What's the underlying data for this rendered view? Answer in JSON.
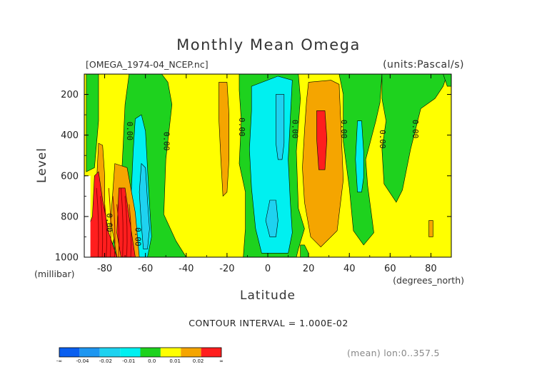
{
  "title": "Monthly Mean Omega",
  "file_label": "[OMEGA_1974-04_NCEP.nc]",
  "units_label": "(units:Pascal/s)",
  "ylabel": "Level",
  "ylabel_units": "(millibar)",
  "xlabel": "Latitude",
  "xlabel_units": "(degrees_north)",
  "contour_interval_text": "CONTOUR INTERVAL = 1.000E-02",
  "mean_text": "(mean) lon:0..357.5",
  "colors": {
    "c_neg_inf": "#0a5ff0",
    "c_m04": "#1e96f0",
    "c_m02": "#1ed2f0",
    "c_m01": "#00f0f0",
    "c_0": "#1ed21e",
    "c_001": "#ffff00",
    "c_002": "#f5a500",
    "c_pos": "#ff1e1e",
    "c_dark": "#8b0000"
  },
  "chart_data": {
    "type": "heatmap",
    "subtype": "filled-contour",
    "variable": "omega",
    "x": {
      "label": "Latitude",
      "units": "degrees_north",
      "range": [
        -90,
        90
      ],
      "ticks": [
        -80,
        -60,
        -40,
        -20,
        0,
        20,
        40,
        60,
        80
      ],
      "tick_labels": [
        "-80",
        "-60",
        "-40",
        "-20",
        "0",
        "20",
        "40",
        "60",
        "80"
      ]
    },
    "y": {
      "label": "Level",
      "units": "millibar",
      "range": [
        1000,
        100
      ],
      "ticks": [
        200,
        400,
        600,
        800,
        1000
      ],
      "tick_labels": [
        "200",
        "400",
        "600",
        "800",
        "1000"
      ]
    },
    "colorbar": {
      "labels": [
        "-∞",
        "-0.04",
        "-0.02",
        "-0.01",
        "0.0",
        "0.01",
        "0.02",
        "∞"
      ],
      "colors": [
        "#0a5ff0",
        "#1e96f0",
        "#1ed2f0",
        "#00f0f0",
        "#1ed21e",
        "#ffff00",
        "#f5a500",
        "#ff1e1e"
      ]
    },
    "contour_interval": 0.01,
    "zero_line_labels": [
      {
        "lat": -69,
        "level": 380,
        "text": "0.00"
      },
      {
        "lat": -51,
        "level": 430,
        "text": "0.00"
      },
      {
        "lat": -14,
        "level": 360,
        "text": "0.00"
      },
      {
        "lat": 12,
        "level": 370,
        "text": "0.00"
      },
      {
        "lat": 36,
        "level": 370,
        "text": "0.00"
      },
      {
        "lat": 55,
        "level": 420,
        "text": "0.00"
      },
      {
        "lat": 71,
        "level": 370,
        "text": "0.00"
      },
      {
        "lat": -79,
        "level": 830,
        "text": "0.00"
      },
      {
        "lat": -65,
        "level": 900,
        "text": "0.00"
      }
    ],
    "regions": [
      {
        "cls": "c_0",
        "pts": [
          [
            -89,
            100
          ],
          [
            -83,
            100
          ],
          [
            -83,
            330
          ],
          [
            -85,
            560
          ],
          [
            -89,
            580
          ]
        ]
      },
      {
        "cls": "c_0",
        "pts": [
          [
            -68,
            100
          ],
          [
            -52,
            100
          ],
          [
            -49,
            140
          ],
          [
            -47,
            250
          ],
          [
            -50,
            520
          ],
          [
            -51,
            790
          ],
          [
            -45,
            920
          ],
          [
            -40,
            1000
          ],
          [
            -78,
            1000
          ],
          [
            -74,
            860
          ],
          [
            -72,
            660
          ],
          [
            -71,
            460
          ],
          [
            -70,
            250
          ]
        ]
      },
      {
        "cls": "c_m01",
        "pts": [
          [
            -65,
            320
          ],
          [
            -62,
            300
          ],
          [
            -60,
            380
          ],
          [
            -59,
            560
          ],
          [
            -58,
            740
          ],
          [
            -57,
            900
          ],
          [
            -59,
            1000
          ],
          [
            -68,
            1000
          ],
          [
            -69,
            870
          ],
          [
            -67,
            690
          ],
          [
            -66,
            480
          ]
        ]
      },
      {
        "cls": "c_m02",
        "pts": [
          [
            -62,
            540
          ],
          [
            -60,
            560
          ],
          [
            -59,
            720
          ],
          [
            -58,
            860
          ],
          [
            -59,
            960
          ],
          [
            -61,
            960
          ],
          [
            -62,
            840
          ],
          [
            -63,
            680
          ]
        ]
      },
      {
        "cls": "c_002",
        "pts": [
          [
            -83,
            440
          ],
          [
            -81,
            450
          ],
          [
            -80,
            600
          ],
          [
            -80,
            800
          ],
          [
            -82,
            900
          ],
          [
            -85,
            850
          ],
          [
            -84,
            640
          ]
        ]
      },
      {
        "cls": "c_002",
        "pts": [
          [
            -75,
            540
          ],
          [
            -69,
            560
          ],
          [
            -65,
            780
          ],
          [
            -63,
            1000
          ],
          [
            -74,
            1000
          ],
          [
            -77,
            820
          ]
        ]
      },
      {
        "cls": "c_pos",
        "pts": [
          [
            -85,
            600
          ],
          [
            -83,
            580
          ],
          [
            -81,
            720
          ],
          [
            -78,
            880
          ],
          [
            -74,
            1000
          ],
          [
            -88,
            1000
          ],
          [
            -88,
            850
          ],
          [
            -86,
            800
          ]
        ]
      },
      {
        "cls": "c_pos",
        "pts": [
          [
            -73,
            660
          ],
          [
            -70,
            660
          ],
          [
            -68,
            800
          ],
          [
            -65,
            1000
          ],
          [
            -72,
            1000
          ],
          [
            -74,
            880
          ]
        ]
      },
      {
        "cls": "c_002",
        "pts": [
          [
            -24,
            140
          ],
          [
            -20,
            140
          ],
          [
            -19,
            300
          ],
          [
            -19,
            520
          ],
          [
            -20,
            680
          ],
          [
            -22,
            700
          ],
          [
            -23,
            520
          ],
          [
            -24,
            320
          ]
        ]
      },
      {
        "cls": "c_0",
        "pts": [
          [
            -14,
            100
          ],
          [
            15,
            100
          ],
          [
            16,
            220
          ],
          [
            14,
            480
          ],
          [
            15,
            760
          ],
          [
            18,
            860
          ],
          [
            15,
            960
          ],
          [
            14,
            1000
          ],
          [
            -12,
            1000
          ],
          [
            -11,
            860
          ],
          [
            -11,
            680
          ],
          [
            -14,
            540
          ],
          [
            -13,
            330
          ],
          [
            -14,
            180
          ]
        ]
      },
      {
        "cls": "c_m01",
        "pts": [
          [
            -8,
            160
          ],
          [
            5,
            110
          ],
          [
            12,
            130
          ],
          [
            11,
            330
          ],
          [
            10,
            520
          ],
          [
            11,
            720
          ],
          [
            12,
            880
          ],
          [
            10,
            980
          ],
          [
            -3,
            980
          ],
          [
            -6,
            860
          ],
          [
            -8,
            660
          ],
          [
            -9,
            470
          ],
          [
            -8,
            280
          ]
        ]
      },
      {
        "cls": "c_m02",
        "pts": [
          [
            4,
            200
          ],
          [
            8,
            200
          ],
          [
            8,
            440
          ],
          [
            7,
            520
          ],
          [
            5,
            520
          ],
          [
            4,
            440
          ]
        ]
      },
      {
        "cls": "c_m02",
        "pts": [
          [
            1,
            720
          ],
          [
            4,
            720
          ],
          [
            5,
            820
          ],
          [
            4,
            900
          ],
          [
            1,
            900
          ],
          [
            -1,
            820
          ]
        ]
      },
      {
        "cls": "c_0",
        "pts": [
          [
            16,
            940
          ],
          [
            18,
            940
          ],
          [
            20,
            980
          ],
          [
            20,
            1000
          ],
          [
            16,
            1000
          ]
        ]
      },
      {
        "cls": "c_002",
        "pts": [
          [
            20,
            140
          ],
          [
            31,
            130
          ],
          [
            35,
            150
          ],
          [
            36,
            380
          ],
          [
            37,
            620
          ],
          [
            34,
            870
          ],
          [
            26,
            950
          ],
          [
            21,
            900
          ],
          [
            18,
            730
          ],
          [
            17,
            560
          ],
          [
            18,
            380
          ],
          [
            19,
            230
          ]
        ]
      },
      {
        "cls": "c_pos",
        "pts": [
          [
            24,
            280
          ],
          [
            28,
            280
          ],
          [
            29,
            420
          ],
          [
            28,
            570
          ],
          [
            25,
            570
          ],
          [
            24,
            420
          ]
        ]
      },
      {
        "cls": "c_0",
        "pts": [
          [
            35,
            100
          ],
          [
            56,
            100
          ],
          [
            55,
            240
          ],
          [
            53,
            330
          ],
          [
            48,
            520
          ],
          [
            49,
            650
          ],
          [
            51,
            800
          ],
          [
            52,
            880
          ],
          [
            47,
            940
          ],
          [
            42,
            870
          ],
          [
            40,
            660
          ],
          [
            37,
            430
          ],
          [
            37,
            200
          ]
        ]
      },
      {
        "cls": "c_m01",
        "pts": [
          [
            44,
            330
          ],
          [
            46,
            330
          ],
          [
            47,
            480
          ],
          [
            47,
            610
          ],
          [
            46,
            680
          ],
          [
            44,
            680
          ],
          [
            43,
            520
          ]
        ]
      },
      {
        "cls": "c_0",
        "pts": [
          [
            56,
            100
          ],
          [
            88,
            100
          ],
          [
            86,
            160
          ],
          [
            82,
            220
          ],
          [
            75,
            270
          ],
          [
            70,
            470
          ],
          [
            66,
            670
          ],
          [
            63,
            730
          ],
          [
            57,
            640
          ],
          [
            56,
            470
          ],
          [
            58,
            330
          ],
          [
            56,
            220
          ]
        ]
      },
      {
        "cls": "c_0",
        "pts": [
          [
            86,
            100
          ],
          [
            90,
            100
          ],
          [
            90,
            160
          ],
          [
            88,
            160
          ]
        ]
      },
      {
        "cls": "c_002",
        "pts": [
          [
            79,
            820
          ],
          [
            81,
            820
          ],
          [
            81,
            900
          ],
          [
            79,
            900
          ]
        ]
      }
    ],
    "blank": [
      [
        -90,
        600
      ],
      [
        -87,
        600
      ],
      [
        -87,
        1000
      ],
      [
        -90,
        1000
      ]
    ]
  }
}
